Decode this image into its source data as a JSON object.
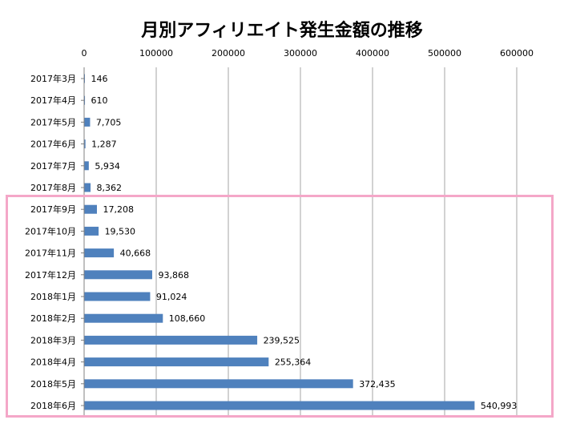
{
  "chart_data": {
    "type": "bar",
    "orientation": "horizontal",
    "title": "月別アフィリエイト発生金額の推移",
    "xlabel": "",
    "ylabel": "",
    "xlim": [
      0,
      600000
    ],
    "x_ticks": [
      "0",
      "100000",
      "200000",
      "300000",
      "400000",
      "500000",
      "600000"
    ],
    "x_tick_values": [
      0,
      100000,
      200000,
      300000,
      400000,
      500000,
      600000
    ],
    "grid": true,
    "categories": [
      "2017年3月",
      "2017年4月",
      "2017年5月",
      "2017年6月",
      "2017年7月",
      "2017年8月",
      "2017年9月",
      "2017年10月",
      "2017年11月",
      "2017年12月",
      "2018年1月",
      "2018年2月",
      "2018年3月",
      "2018年4月",
      "2018年5月",
      "2018年6月"
    ],
    "values": [
      146,
      610,
      7705,
      1287,
      5934,
      8362,
      17208,
      19530,
      40668,
      93868,
      91024,
      108660,
      239525,
      255364,
      372435,
      540993
    ],
    "data_labels": [
      "146",
      "610",
      "7,705",
      "1,287",
      "5,934",
      "8,362",
      "17,208",
      "19,530",
      "40,668",
      "93,868",
      "91,024",
      "108,660",
      "239,525",
      "255,364",
      "372,435",
      "540,993"
    ],
    "highlighted_range": [
      "2017年9月",
      "2018年6月"
    ],
    "colors": {
      "bar": "#4f81bd",
      "highlight_border": "#f4a7c8",
      "grid": "#a6a6a6"
    }
  }
}
